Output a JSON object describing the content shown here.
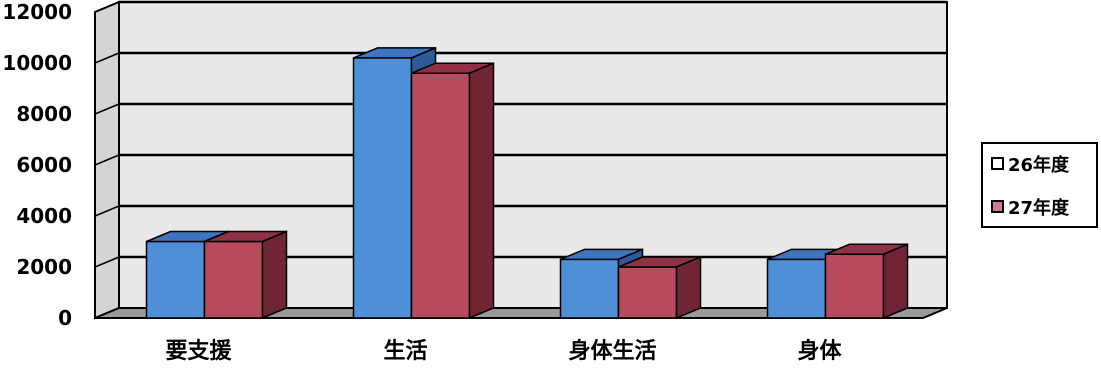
{
  "chart_data": {
    "type": "bar",
    "categories": [
      "要支援",
      "生活",
      "身体生活",
      "身体"
    ],
    "series": [
      {
        "name": "26年度",
        "values": [
          3000,
          10200,
          2300,
          2300
        ]
      },
      {
        "name": "27年度",
        "values": [
          3000,
          9600,
          2000,
          2500
        ]
      }
    ],
    "ylim": [
      0,
      12000
    ],
    "yticks": [
      0,
      2000,
      4000,
      6000,
      8000,
      10000,
      12000
    ],
    "grid": true,
    "legend": "right",
    "colors": {
      "series": [
        "#4f8fd8",
        "#b84a5e"
      ],
      "series_top": [
        "#3f74c0",
        "#8f3246"
      ],
      "series_side": [
        "#2f5a99",
        "#6f2534"
      ],
      "wall": "#e9e9e9",
      "floor": "#9a9a9a"
    }
  }
}
